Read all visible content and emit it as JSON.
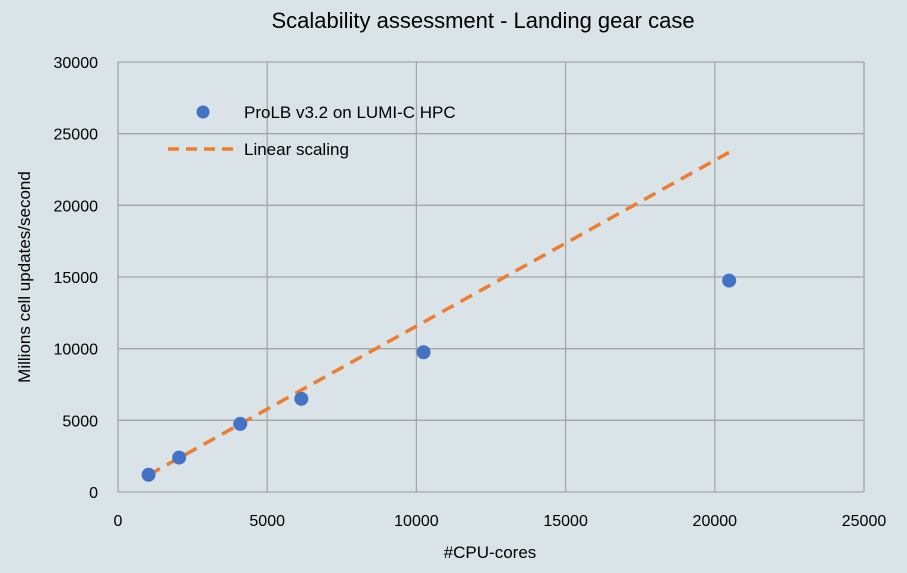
{
  "chart_data": {
    "type": "scatter",
    "title": "Scalability assessment - Landing gear case",
    "xlabel": "#CPU-cores",
    "ylabel": "Millions cell updates/second",
    "xlim": [
      0,
      25000
    ],
    "ylim": [
      0,
      30000
    ],
    "xticks": [
      0,
      5000,
      10000,
      15000,
      20000,
      25000
    ],
    "yticks": [
      0,
      5000,
      10000,
      15000,
      20000,
      25000,
      30000
    ],
    "x_tick_labels": [
      "0",
      "5000",
      "10000",
      "15000",
      "20000",
      "25000"
    ],
    "y_tick_labels": [
      "0",
      "5000",
      "10000",
      "15000",
      "20000",
      "25000",
      "30000"
    ],
    "grid": true,
    "legend_position": "top-left",
    "series": [
      {
        "name": "ProLB v3.2 on LUMI-C HPC",
        "kind": "scatter",
        "color": "#4472c4",
        "x": [
          1024,
          2048,
          4096,
          6144,
          10240,
          20480
        ],
        "y": [
          1200,
          2400,
          4750,
          6500,
          9750,
          14750
        ]
      },
      {
        "name": "Linear scaling",
        "kind": "dashed-line",
        "color": "#ed7d31",
        "x": [
          1024,
          20480
        ],
        "y": [
          1185,
          23700
        ]
      }
    ]
  }
}
